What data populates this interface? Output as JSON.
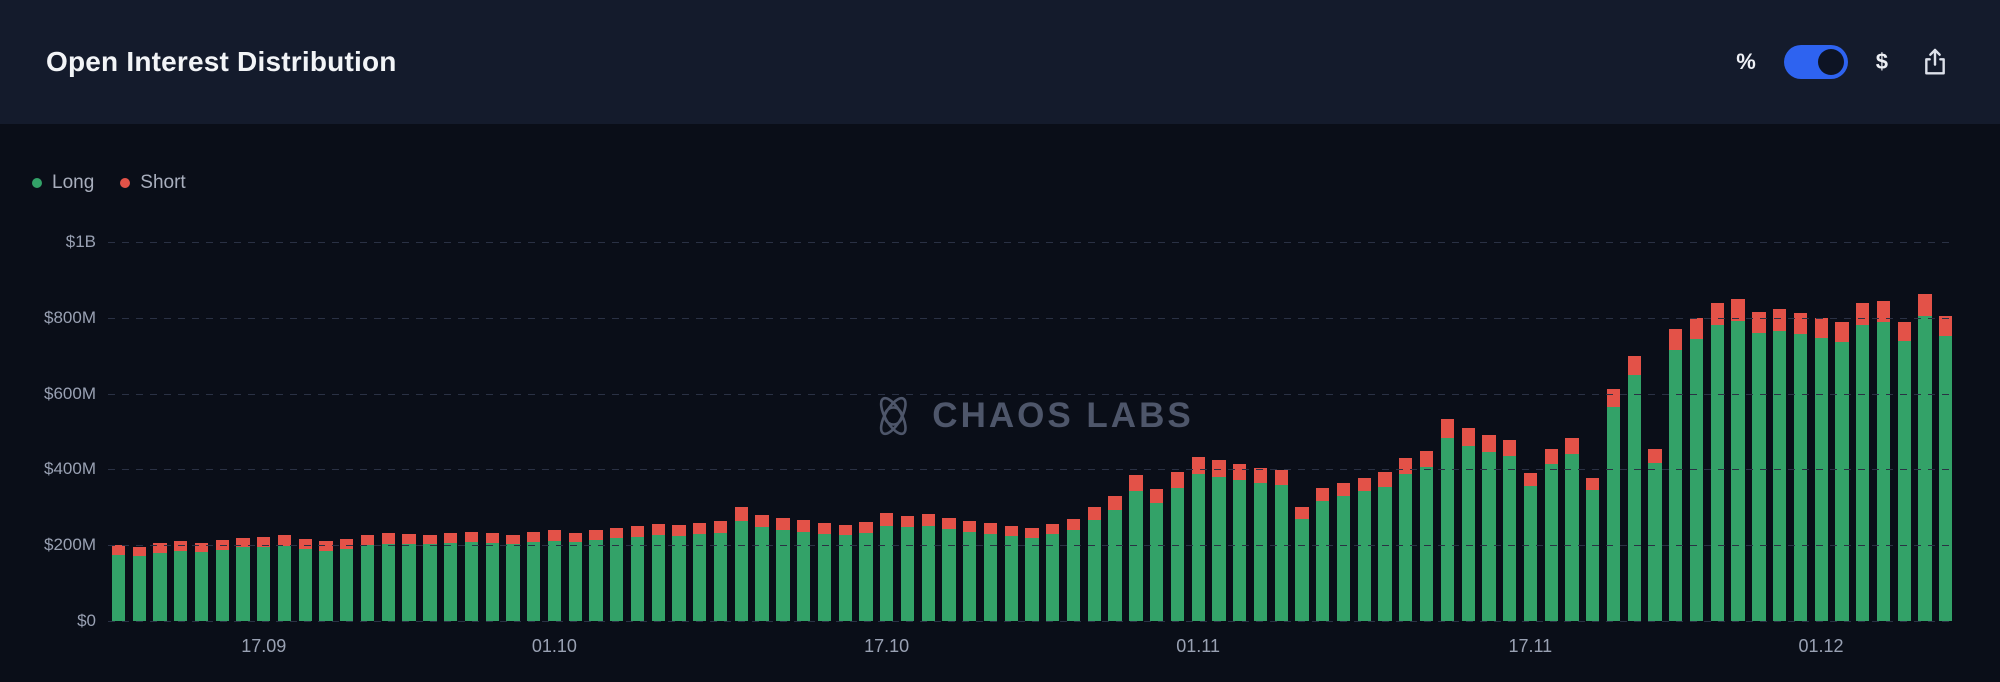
{
  "header": {
    "title": "Open Interest Distribution",
    "percent_label": "%",
    "dollar_label": "$",
    "unit_selected": "$"
  },
  "legend": [
    {
      "label": "Long",
      "color": "#33a268"
    },
    {
      "label": "Short",
      "color": "#e35248"
    }
  ],
  "watermark": {
    "text": "CHAOS LABS"
  },
  "colors": {
    "long": "#33a268",
    "short": "#e35248",
    "toggle_accent": "#2e63f0",
    "toggle_knob": "#0d1424",
    "grid": "#2a3144",
    "header_bg": "#141b2c",
    "chart_bg": "#0a0e18",
    "axis_text": "#99a1b3",
    "watermark_text": "#4e566a"
  },
  "chart_data": {
    "type": "bar",
    "stacked": true,
    "title": "Open Interest Distribution",
    "unit": "$M",
    "ylim": [
      0,
      1000
    ],
    "grid": "dashed-horizontal",
    "legend_position": "top-left",
    "y_ticks": [
      "$0",
      "$200M",
      "$400M",
      "$600M",
      "$800M",
      "$1B"
    ],
    "x_tick_labels": [
      "17.09",
      "01.10",
      "17.10",
      "01.11",
      "17.11",
      "01.12"
    ],
    "x": [
      "10.09",
      "11.09",
      "12.09",
      "13.09",
      "14.09",
      "15.09",
      "16.09",
      "17.09",
      "18.09",
      "19.09",
      "20.09",
      "21.09",
      "22.09",
      "23.09",
      "24.09",
      "25.09",
      "26.09",
      "27.09",
      "28.09",
      "29.09",
      "30.09",
      "01.10",
      "02.10",
      "03.10",
      "04.10",
      "05.10",
      "06.10",
      "07.10",
      "08.10",
      "09.10",
      "10.10",
      "11.10",
      "12.10",
      "13.10",
      "14.10",
      "15.10",
      "16.10",
      "17.10",
      "18.10",
      "19.10",
      "20.10",
      "21.10",
      "22.10",
      "23.10",
      "24.10",
      "25.10",
      "26.10",
      "27.10",
      "28.10",
      "29.10",
      "30.10",
      "31.10",
      "01.11",
      "02.11",
      "03.11",
      "04.11",
      "05.11",
      "06.11",
      "07.11",
      "08.11",
      "09.11",
      "10.11",
      "11.11",
      "12.11",
      "13.11",
      "14.11",
      "15.11",
      "16.11",
      "17.11",
      "18.11",
      "19.11",
      "20.11",
      "21.11",
      "22.11",
      "23.11",
      "24.11",
      "25.11",
      "26.11",
      "27.11",
      "28.11",
      "29.11",
      "30.11",
      "01.12",
      "02.12",
      "03.12",
      "04.12",
      "05.12",
      "06.12",
      "07.12"
    ],
    "series": [
      {
        "name": "Long",
        "color": "#33a268",
        "values": [
          175,
          172,
          179,
          184,
          182,
          188,
          194,
          195,
          198,
          190,
          186,
          191,
          201,
          204,
          203,
          202,
          206,
          208,
          205,
          203,
          209,
          212,
          208,
          214,
          218,
          222,
          226,
          224,
          229,
          233,
          264,
          247,
          241,
          236,
          229,
          226,
          233,
          252,
          247,
          250,
          242,
          235,
          230,
          223,
          220,
          229,
          239,
          267,
          294,
          343,
          311,
          350,
          387,
          381,
          372,
          363,
          358,
          270,
          316,
          330,
          342,
          354,
          389,
          406,
          484,
          462,
          446,
          435,
          355,
          415,
          440,
          345,
          564,
          648,
          417,
          715,
          744,
          780,
          792,
          760,
          766,
          757,
          746,
          737,
          782,
          788,
          738,
          804,
          751
        ]
      },
      {
        "name": "Short",
        "color": "#e35248",
        "values": [
          25,
          24,
          26,
          26,
          24,
          26,
          26,
          27,
          28,
          26,
          24,
          25,
          27,
          28,
          27,
          26,
          27,
          28,
          26,
          25,
          27,
          27,
          25,
          27,
          28,
          29,
          30,
          29,
          30,
          31,
          36,
          33,
          31,
          30,
          29,
          28,
          29,
          33,
          31,
          32,
          30,
          29,
          28,
          27,
          26,
          28,
          29,
          33,
          36,
          42,
          37,
          42,
          45,
          44,
          43,
          42,
          40,
          30,
          34,
          35,
          36,
          38,
          41,
          42,
          48,
          46,
          44,
          43,
          35,
          40,
          42,
          33,
          48,
          52,
          38,
          55,
          56,
          58,
          58,
          55,
          56,
          55,
          54,
          53,
          56,
          57,
          52,
          58,
          54
        ]
      }
    ]
  }
}
